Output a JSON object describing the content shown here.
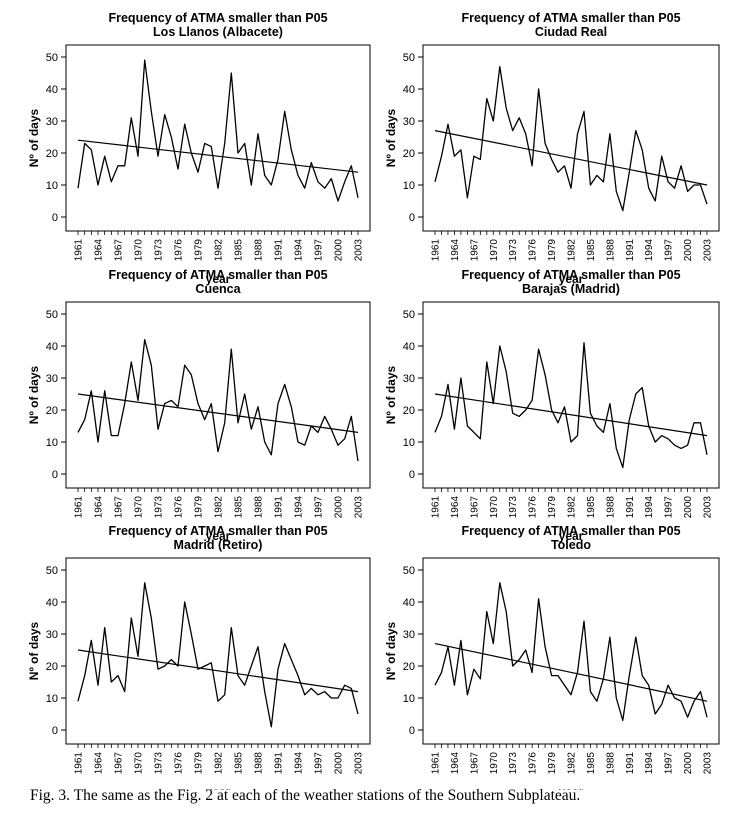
{
  "caption": "Fig. 3. The same as the Fig. 2 at each of the weather stations of the Southern Subplateau.",
  "chart_data": [
    {
      "type": "line",
      "title": "Frequency of ATMA smaller than P05",
      "subtitle": "Los Llanos (Albacete)",
      "xlabel": "year",
      "ylabel": "Nº of days",
      "ylim": [
        0,
        50
      ],
      "yticks": [
        "0",
        "10",
        "20",
        "30",
        "40",
        "50"
      ],
      "xticks": [
        "1961",
        "1964",
        "1967",
        "1970",
        "1973",
        "1976",
        "1979",
        "1982",
        "1985",
        "1988",
        "1991",
        "1994",
        "1997",
        "2000",
        "2003"
      ],
      "trend": [
        24,
        14
      ],
      "x": [
        1961,
        1962,
        1963,
        1964,
        1965,
        1966,
        1967,
        1968,
        1969,
        1970,
        1971,
        1972,
        1973,
        1974,
        1975,
        1976,
        1977,
        1978,
        1979,
        1980,
        1981,
        1982,
        1983,
        1984,
        1985,
        1986,
        1987,
        1988,
        1989,
        1990,
        1991,
        1992,
        1993,
        1994,
        1995,
        1996,
        1997,
        1998,
        1999,
        2000,
        2001,
        2002,
        2003
      ],
      "values": [
        9,
        23,
        21,
        10,
        19,
        11,
        16,
        16,
        31,
        19,
        49,
        33,
        19,
        32,
        25,
        15,
        29,
        20,
        14,
        23,
        22,
        9,
        23,
        45,
        20,
        23,
        10,
        26,
        13,
        10,
        18,
        33,
        21,
        13,
        9,
        17,
        11,
        9,
        12,
        5,
        11,
        16,
        6
      ]
    },
    {
      "type": "line",
      "title": "Frequency of ATMA smaller than P05",
      "subtitle": "Ciudad Real",
      "xlabel": "year",
      "ylabel": "Nº of days",
      "ylim": [
        0,
        50
      ],
      "yticks": [
        "0",
        "10",
        "20",
        "30",
        "40",
        "50"
      ],
      "xticks": [
        "1961",
        "1964",
        "1967",
        "1970",
        "1973",
        "1976",
        "1979",
        "1982",
        "1985",
        "1988",
        "1991",
        "1994",
        "1997",
        "2000",
        "2003"
      ],
      "trend": [
        27,
        10
      ],
      "x": [
        1961,
        1962,
        1963,
        1964,
        1965,
        1966,
        1967,
        1968,
        1969,
        1970,
        1971,
        1972,
        1973,
        1974,
        1975,
        1976,
        1977,
        1978,
        1979,
        1980,
        1981,
        1982,
        1983,
        1984,
        1985,
        1986,
        1987,
        1988,
        1989,
        1990,
        1991,
        1992,
        1993,
        1994,
        1995,
        1996,
        1997,
        1998,
        1999,
        2000,
        2001,
        2002,
        2003
      ],
      "values": [
        11,
        19,
        29,
        19,
        21,
        6,
        19,
        18,
        37,
        30,
        47,
        34,
        27,
        31,
        26,
        16,
        40,
        23,
        18,
        14,
        16,
        9,
        26,
        33,
        10,
        13,
        11,
        26,
        8,
        2,
        14,
        27,
        21,
        9,
        5,
        19,
        11,
        9,
        16,
        8,
        10,
        10,
        4
      ]
    },
    {
      "type": "line",
      "title": "Frequency of ATMA smaller than P05",
      "subtitle": "Cuenca",
      "xlabel": "year",
      "ylabel": "Nº of days",
      "ylim": [
        0,
        50
      ],
      "yticks": [
        "0",
        "10",
        "20",
        "30",
        "40",
        "50"
      ],
      "xticks": [
        "1961",
        "1964",
        "1967",
        "1970",
        "1973",
        "1976",
        "1979",
        "1982",
        "1985",
        "1988",
        "1991",
        "1994",
        "1997",
        "2000",
        "2003"
      ],
      "trend": [
        25,
        13
      ],
      "x": [
        1961,
        1962,
        1963,
        1964,
        1965,
        1966,
        1967,
        1968,
        1969,
        1970,
        1971,
        1972,
        1973,
        1974,
        1975,
        1976,
        1977,
        1978,
        1979,
        1980,
        1981,
        1982,
        1983,
        1984,
        1985,
        1986,
        1987,
        1988,
        1989,
        1990,
        1991,
        1992,
        1993,
        1994,
        1995,
        1996,
        1997,
        1998,
        1999,
        2000,
        2001,
        2002,
        2003
      ],
      "values": [
        13,
        17,
        26,
        10,
        26,
        12,
        12,
        22,
        35,
        23,
        42,
        34,
        14,
        22,
        23,
        21,
        34,
        31,
        22,
        17,
        22,
        7,
        16,
        39,
        16,
        25,
        14,
        21,
        10,
        6,
        22,
        28,
        21,
        10,
        9,
        15,
        13,
        18,
        14,
        9,
        11,
        18,
        4
      ]
    },
    {
      "type": "line",
      "title": "Frequency of ATMA smaller than P05",
      "subtitle": "Barajas (Madrid)",
      "xlabel": "year",
      "ylabel": "Nº of days",
      "ylim": [
        0,
        50
      ],
      "yticks": [
        "0",
        "10",
        "20",
        "30",
        "40",
        "50"
      ],
      "xticks": [
        "1961",
        "1964",
        "1967",
        "1970",
        "1973",
        "1976",
        "1979",
        "1982",
        "1985",
        "1988",
        "1991",
        "1994",
        "1997",
        "2000",
        "2003"
      ],
      "trend": [
        25,
        12
      ],
      "x": [
        1961,
        1962,
        1963,
        1964,
        1965,
        1966,
        1967,
        1968,
        1969,
        1970,
        1971,
        1972,
        1973,
        1974,
        1975,
        1976,
        1977,
        1978,
        1979,
        1980,
        1981,
        1982,
        1983,
        1984,
        1985,
        1986,
        1987,
        1988,
        1989,
        1990,
        1991,
        1992,
        1993,
        1994,
        1995,
        1996,
        1997,
        1998,
        1999,
        2000,
        2001,
        2002,
        2003
      ],
      "values": [
        13,
        18,
        28,
        14,
        30,
        15,
        13,
        11,
        35,
        22,
        40,
        32,
        19,
        18,
        20,
        23,
        39,
        31,
        20,
        16,
        21,
        10,
        12,
        41,
        19,
        15,
        13,
        22,
        8,
        2,
        17,
        25,
        27,
        15,
        10,
        12,
        11,
        9,
        8,
        9,
        16,
        16,
        6
      ]
    },
    {
      "type": "line",
      "title": "Frequency of ATMA smaller than P05",
      "subtitle": "Madrid (Retiro)",
      "xlabel": "year",
      "ylabel": "Nº of days",
      "ylim": [
        0,
        50
      ],
      "yticks": [
        "0",
        "10",
        "20",
        "30",
        "40",
        "50"
      ],
      "xticks": [
        "1961",
        "1964",
        "1967",
        "1970",
        "1973",
        "1976",
        "1979",
        "1982",
        "1985",
        "1988",
        "1991",
        "1994",
        "1997",
        "2000",
        "2003"
      ],
      "trend": [
        25,
        12
      ],
      "x": [
        1961,
        1962,
        1963,
        1964,
        1965,
        1966,
        1967,
        1968,
        1969,
        1970,
        1971,
        1972,
        1973,
        1974,
        1975,
        1976,
        1977,
        1978,
        1979,
        1980,
        1981,
        1982,
        1983,
        1984,
        1985,
        1986,
        1987,
        1988,
        1989,
        1990,
        1991,
        1992,
        1993,
        1994,
        1995,
        1996,
        1997,
        1998,
        1999,
        2000,
        2001,
        2002,
        2003
      ],
      "values": [
        9,
        17,
        28,
        14,
        32,
        15,
        17,
        12,
        35,
        23,
        46,
        35,
        19,
        20,
        22,
        20,
        40,
        30,
        19,
        20,
        21,
        9,
        11,
        32,
        17,
        14,
        20,
        26,
        12,
        1,
        19,
        27,
        22,
        17,
        11,
        13,
        11,
        12,
        10,
        10,
        14,
        13,
        5
      ]
    },
    {
      "type": "line",
      "title": "Frequency of ATMA smaller than P05",
      "subtitle": "Toledo",
      "xlabel": "year",
      "ylabel": "Nº of days",
      "ylim": [
        0,
        50
      ],
      "yticks": [
        "0",
        "10",
        "20",
        "30",
        "40",
        "50"
      ],
      "xticks": [
        "1961",
        "1964",
        "1967",
        "1970",
        "1973",
        "1976",
        "1979",
        "1982",
        "1985",
        "1988",
        "1991",
        "1994",
        "1997",
        "2000",
        "2003"
      ],
      "trend": [
        27,
        9
      ],
      "x": [
        1961,
        1962,
        1963,
        1964,
        1965,
        1966,
        1967,
        1968,
        1969,
        1970,
        1971,
        1972,
        1973,
        1974,
        1975,
        1976,
        1977,
        1978,
        1979,
        1980,
        1981,
        1982,
        1983,
        1984,
        1985,
        1986,
        1987,
        1988,
        1989,
        1990,
        1991,
        1992,
        1993,
        1994,
        1995,
        1996,
        1997,
        1998,
        1999,
        2000,
        2001,
        2002,
        2003
      ],
      "values": [
        14,
        18,
        26,
        14,
        28,
        11,
        19,
        16,
        37,
        27,
        46,
        37,
        20,
        22,
        25,
        18,
        41,
        26,
        17,
        17,
        14,
        11,
        18,
        34,
        12,
        9,
        16,
        29,
        10,
        3,
        17,
        29,
        17,
        14,
        5,
        8,
        14,
        10,
        9,
        4,
        9,
        12,
        4
      ]
    }
  ]
}
